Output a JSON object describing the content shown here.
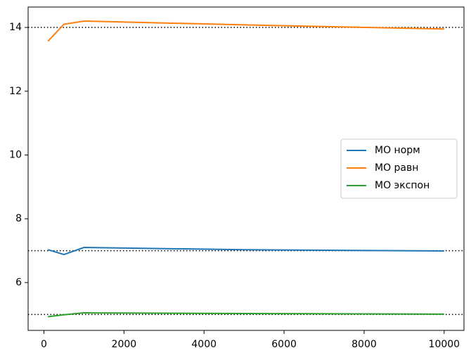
{
  "chart_data": {
    "type": "line",
    "x": [
      100,
      500,
      1000,
      5000,
      10000
    ],
    "series": [
      {
        "name": "МО норм",
        "color": "#1f77b4",
        "values": [
          7.03,
          6.88,
          7.1,
          7.03,
          6.99
        ]
      },
      {
        "name": "МО равн",
        "color": "#ff7f0e",
        "values": [
          13.57,
          14.1,
          14.2,
          14.08,
          13.95
        ]
      },
      {
        "name": "МО экспон",
        "color": "#2ca02c",
        "values": [
          4.93,
          4.99,
          5.05,
          5.03,
          5.01
        ]
      }
    ],
    "hlines": [
      14,
      7,
      5
    ],
    "xlim": [
      -395,
      10495
    ],
    "ylim": [
      4.5,
      14.64
    ],
    "xticks": [
      0,
      2000,
      4000,
      6000,
      8000,
      10000
    ],
    "yticks": [
      6,
      8,
      10,
      12,
      14
    ],
    "legend": "center right"
  }
}
